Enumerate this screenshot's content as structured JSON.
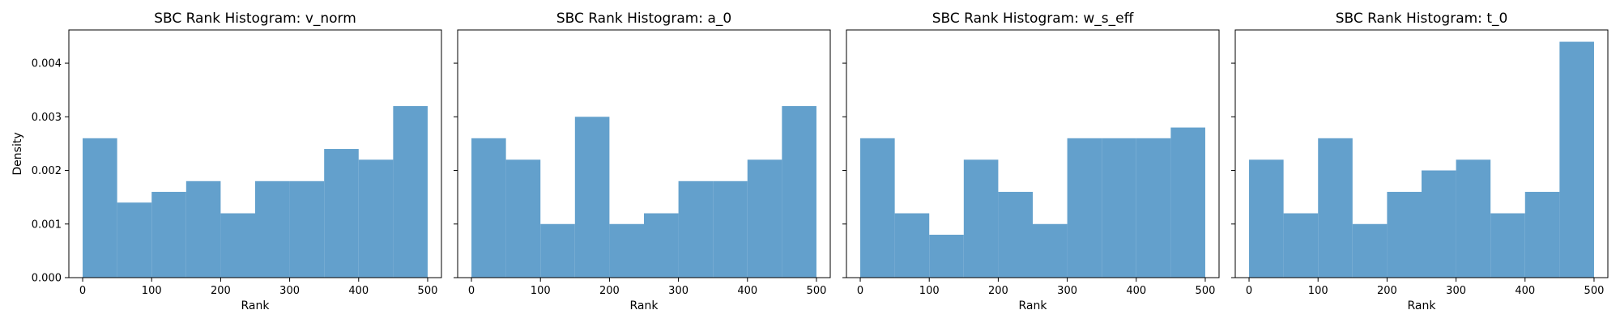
{
  "colors": {
    "bar": "#5b9bc9",
    "axis": "#000000",
    "background": "#ffffff"
  },
  "chart_data": [
    {
      "type": "bar",
      "title": "SBC Rank Histogram: v_norm",
      "xlabel": "Rank",
      "ylabel": "Density",
      "xlim": [
        -20,
        520
      ],
      "ylim": [
        0,
        0.00462
      ],
      "xticks": [
        0,
        100,
        200,
        300,
        400,
        500
      ],
      "yticks": [
        0,
        0.001,
        0.002,
        0.003,
        0.004
      ],
      "ytick_labels": [
        "0.000",
        "0.001",
        "0.002",
        "0.003",
        "0.004"
      ],
      "bin_edges": [
        0,
        50,
        100,
        150,
        200,
        250,
        300,
        350,
        400,
        450,
        500
      ],
      "values": [
        0.0026,
        0.0014,
        0.0016,
        0.0018,
        0.0012,
        0.0018,
        0.0018,
        0.0024,
        0.0022,
        0.0032
      ]
    },
    {
      "type": "bar",
      "title": "SBC Rank Histogram: a_0",
      "xlabel": "Rank",
      "ylabel": "",
      "xlim": [
        -20,
        520
      ],
      "ylim": [
        0,
        0.00462
      ],
      "xticks": [
        0,
        100,
        200,
        300,
        400,
        500
      ],
      "yticks": [
        0,
        0.001,
        0.002,
        0.003,
        0.004
      ],
      "ytick_labels": [],
      "bin_edges": [
        0,
        50,
        100,
        150,
        200,
        250,
        300,
        350,
        400,
        450,
        500
      ],
      "values": [
        0.0026,
        0.0022,
        0.001,
        0.003,
        0.001,
        0.0012,
        0.0018,
        0.0018,
        0.0022,
        0.0032
      ]
    },
    {
      "type": "bar",
      "title": "SBC Rank Histogram: w_s_eff",
      "xlabel": "Rank",
      "ylabel": "",
      "xlim": [
        -20,
        520
      ],
      "ylim": [
        0,
        0.00462
      ],
      "xticks": [
        0,
        100,
        200,
        300,
        400,
        500
      ],
      "yticks": [
        0,
        0.001,
        0.002,
        0.003,
        0.004
      ],
      "ytick_labels": [],
      "bin_edges": [
        0,
        50,
        100,
        150,
        200,
        250,
        300,
        350,
        400,
        450,
        500
      ],
      "values": [
        0.0026,
        0.0012,
        0.0008,
        0.0022,
        0.0016,
        0.001,
        0.0026,
        0.0026,
        0.0026,
        0.0028
      ]
    },
    {
      "type": "bar",
      "title": "SBC Rank Histogram: t_0",
      "xlabel": "Rank",
      "ylabel": "",
      "xlim": [
        -20,
        520
      ],
      "ylim": [
        0,
        0.00462
      ],
      "xticks": [
        0,
        100,
        200,
        300,
        400,
        500
      ],
      "yticks": [
        0,
        0.001,
        0.002,
        0.003,
        0.004
      ],
      "ytick_labels": [],
      "bin_edges": [
        0,
        50,
        100,
        150,
        200,
        250,
        300,
        350,
        400,
        450,
        500
      ],
      "values": [
        0.0022,
        0.0012,
        0.0026,
        0.001,
        0.0016,
        0.002,
        0.0022,
        0.0012,
        0.0016,
        0.0044
      ]
    }
  ]
}
